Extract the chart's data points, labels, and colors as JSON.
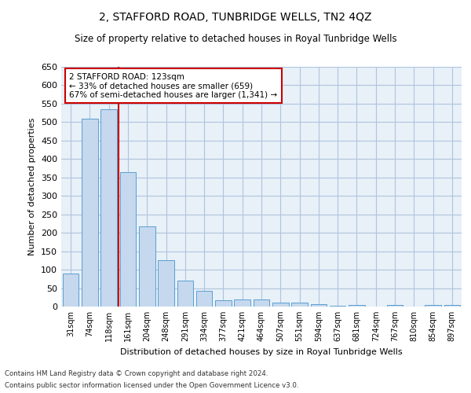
{
  "title": "2, STAFFORD ROAD, TUNBRIDGE WELLS, TN2 4QZ",
  "subtitle": "Size of property relative to detached houses in Royal Tunbridge Wells",
  "xlabel": "Distribution of detached houses by size in Royal Tunbridge Wells",
  "ylabel": "Number of detached properties",
  "footnote1": "Contains HM Land Registry data © Crown copyright and database right 2024.",
  "footnote2": "Contains public sector information licensed under the Open Government Licence v3.0.",
  "categories": [
    "31sqm",
    "74sqm",
    "118sqm",
    "161sqm",
    "204sqm",
    "248sqm",
    "291sqm",
    "334sqm",
    "377sqm",
    "421sqm",
    "464sqm",
    "507sqm",
    "551sqm",
    "594sqm",
    "637sqm",
    "681sqm",
    "724sqm",
    "767sqm",
    "810sqm",
    "854sqm",
    "897sqm"
  ],
  "values": [
    90,
    510,
    535,
    365,
    218,
    125,
    70,
    42,
    17,
    20,
    20,
    11,
    11,
    6,
    2,
    5,
    1,
    5,
    1,
    4,
    4
  ],
  "bar_color": "#c5d8ed",
  "bar_edge_color": "#5a9fd4",
  "grid_color": "#b0c4de",
  "background_color": "#e8f0f8",
  "property_line_x": 2.5,
  "property_line_color": "#cc0000",
  "annotation_text": "2 STAFFORD ROAD: 123sqm\n← 33% of detached houses are smaller (659)\n67% of semi-detached houses are larger (1,341) →",
  "annotation_box_color": "#ffffff",
  "annotation_box_edge": "#cc0000",
  "ylim": [
    0,
    650
  ],
  "yticks": [
    0,
    50,
    100,
    150,
    200,
    250,
    300,
    350,
    400,
    450,
    500,
    550,
    600,
    650
  ]
}
